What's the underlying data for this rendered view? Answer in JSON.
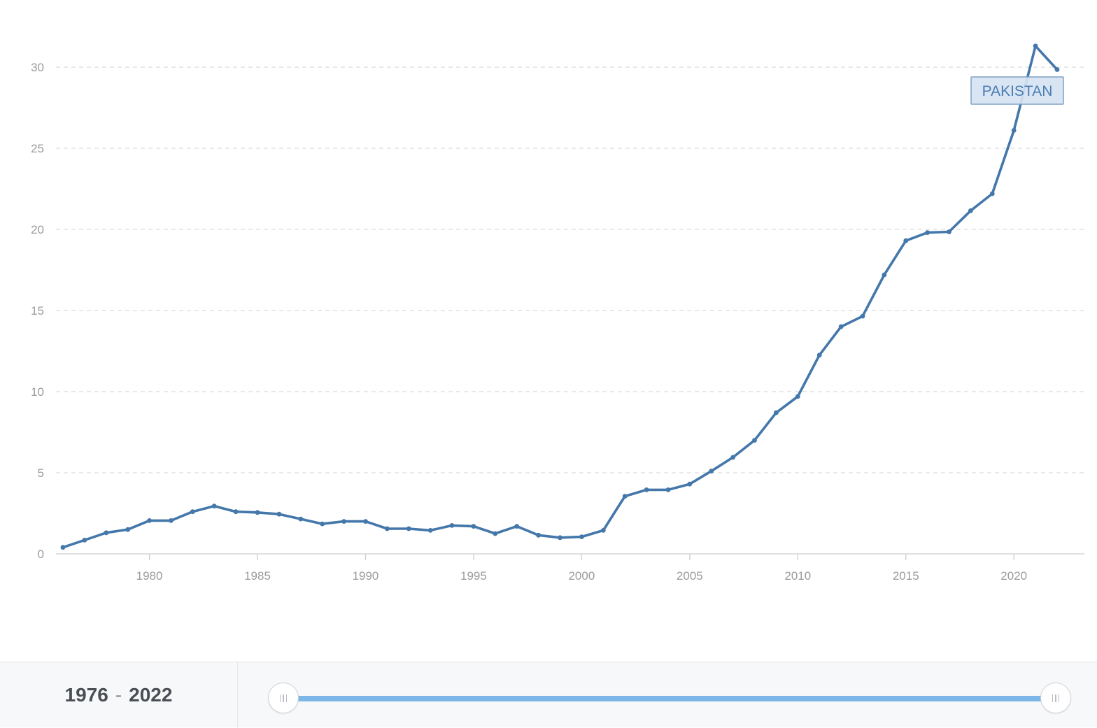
{
  "chart_data": {
    "type": "line",
    "title": "",
    "xlabel": "",
    "ylabel": "",
    "xlim": [
      1976,
      2022
    ],
    "ylim": [
      0,
      32
    ],
    "y_ticks": [
      0,
      5,
      10,
      15,
      20,
      25,
      30
    ],
    "x_ticks": [
      1980,
      1985,
      1990,
      1995,
      2000,
      2005,
      2010,
      2015,
      2020
    ],
    "grid": true,
    "series": [
      {
        "name": "PAKISTAN",
        "color": "#4477aa",
        "x": [
          1976,
          1977,
          1978,
          1979,
          1980,
          1981,
          1982,
          1983,
          1984,
          1985,
          1986,
          1987,
          1988,
          1989,
          1990,
          1991,
          1992,
          1993,
          1994,
          1995,
          1996,
          1997,
          1998,
          1999,
          2000,
          2001,
          2002,
          2003,
          2004,
          2005,
          2006,
          2007,
          2008,
          2009,
          2010,
          2011,
          2012,
          2013,
          2014,
          2015,
          2016,
          2017,
          2018,
          2019,
          2020,
          2021,
          2022
        ],
        "values": [
          0.4,
          0.85,
          1.3,
          1.5,
          2.05,
          2.05,
          2.6,
          2.95,
          2.6,
          2.55,
          2.45,
          2.15,
          1.85,
          2.0,
          2.0,
          1.55,
          1.55,
          1.45,
          1.75,
          1.7,
          1.25,
          1.7,
          1.15,
          1.0,
          1.05,
          1.45,
          3.55,
          3.95,
          3.95,
          4.3,
          5.1,
          5.95,
          7.0,
          8.7,
          9.7,
          12.25,
          14.0,
          14.65,
          17.2,
          19.3,
          19.8,
          19.85,
          21.15,
          22.2,
          26.1,
          31.3,
          29.85
        ]
      }
    ]
  },
  "range_selector": {
    "start": "1976",
    "separator": "-",
    "end": "2022"
  }
}
